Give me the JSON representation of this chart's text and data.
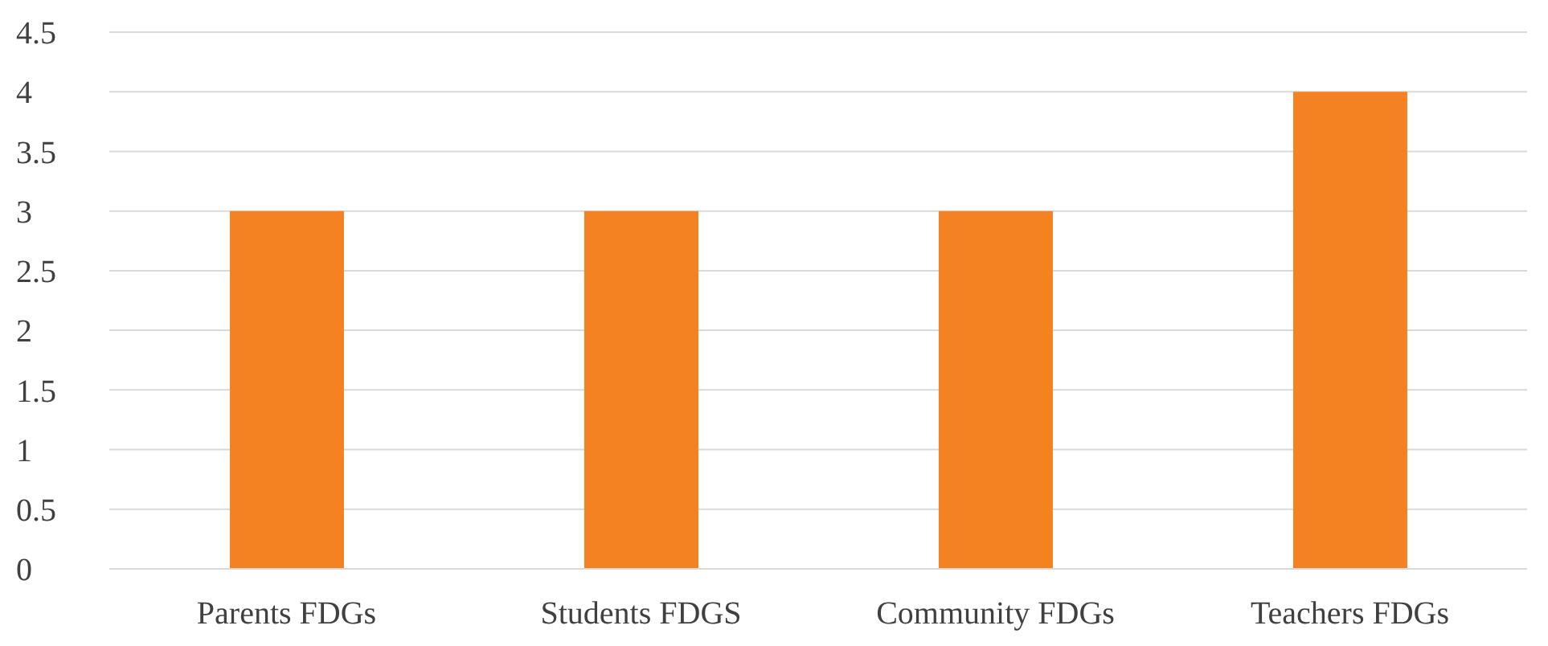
{
  "chart_data": {
    "type": "bar",
    "categories": [
      "Parents FDGs",
      "Students FDGS",
      "Community FDGs",
      "Teachers FDGs"
    ],
    "values": [
      3,
      3,
      3,
      4
    ],
    "color": "#f58220",
    "ylim": [
      0,
      4.5
    ],
    "yticks": [
      0,
      0.5,
      1,
      1.5,
      2,
      2.5,
      3,
      3.5,
      4,
      4.5
    ],
    "grid": "y"
  }
}
